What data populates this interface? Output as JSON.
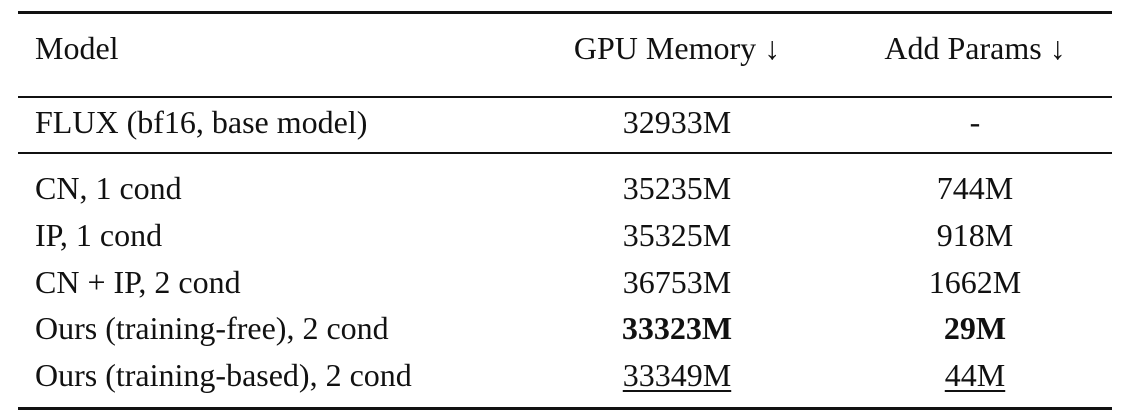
{
  "table": {
    "header": [
      "Model",
      "GPU Memory ↓",
      "Add Params ↓"
    ],
    "rows": [
      [
        "FLUX (bf16, base model)",
        "32933M",
        "-"
      ],
      [
        "CN, 1 cond",
        "35235M",
        "744M"
      ],
      [
        "IP, 1 cond",
        "35325M",
        "918M"
      ],
      [
        "CN + IP, 2 cond",
        "36753M",
        "1662M"
      ],
      [
        "Ours (training-free), 2 cond",
        "33323M",
        "29M"
      ],
      [
        "Ours (training-based), 2 cond",
        "33349M",
        "44M"
      ]
    ]
  }
}
